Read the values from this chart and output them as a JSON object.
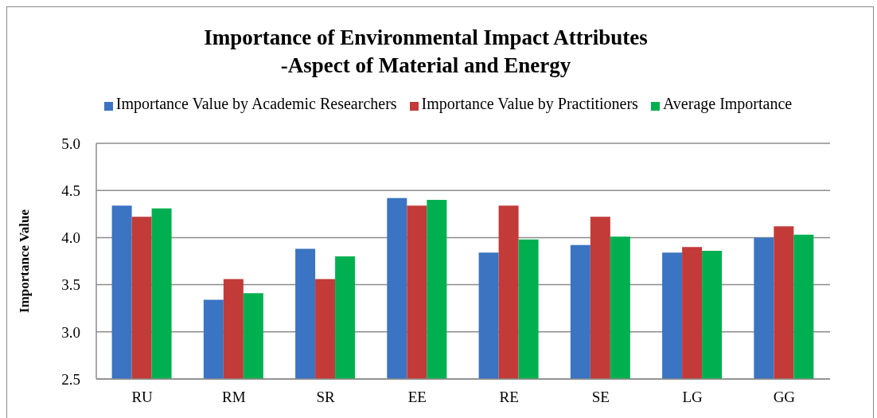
{
  "chart_data": {
    "type": "bar",
    "title": "Importance of Environmental Impact Attributes\n-Aspect of Material and Energy",
    "ylabel": "Importance Value",
    "categories": [
      "RU",
      "RM",
      "SR",
      "EE",
      "RE",
      "SE",
      "LG",
      "GG"
    ],
    "series": [
      {
        "name": "Importance Value by Academic Researchers",
        "color": "#3a74c2",
        "values": [
          4.34,
          3.34,
          3.88,
          4.42,
          3.84,
          3.92,
          3.84,
          4.0
        ]
      },
      {
        "name": "Importance Value by Practitioners",
        "color": "#c23b38",
        "values": [
          4.22,
          3.56,
          3.56,
          4.34,
          4.34,
          4.22,
          3.9,
          4.12
        ]
      },
      {
        "name": "Average Importance",
        "color": "#00b050",
        "values": [
          4.31,
          3.41,
          3.8,
          4.4,
          3.98,
          4.01,
          3.86,
          4.03
        ]
      }
    ],
    "ylim": [
      2.5,
      5.0
    ],
    "yticks": [
      2.5,
      {
        "value": 3.0,
        "label": "3.0"
      },
      3.5,
      {
        "value": 4.0,
        "label": "4.0"
      },
      4.5,
      {
        "value": 5.0,
        "label": "5.0"
      }
    ],
    "grid": "y",
    "legend": "top"
  }
}
